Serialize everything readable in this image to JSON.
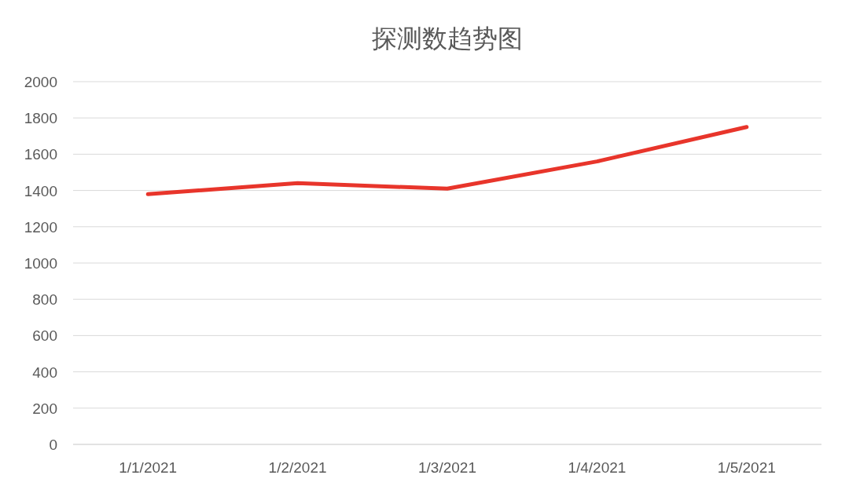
{
  "chart_data": {
    "type": "line",
    "title": "探测数趋势图",
    "categories": [
      "1/1/2021",
      "1/2/2021",
      "1/3/2021",
      "1/4/2021",
      "1/5/2021"
    ],
    "series": [
      {
        "color": "#e8352b",
        "values": [
          1380,
          1440,
          1410,
          1560,
          1750
        ]
      }
    ],
    "ylim": [
      0,
      2000
    ],
    "yticks": [
      0,
      200,
      400,
      600,
      800,
      1000,
      1200,
      1400,
      1600,
      1800,
      2000
    ],
    "grid": "y"
  }
}
